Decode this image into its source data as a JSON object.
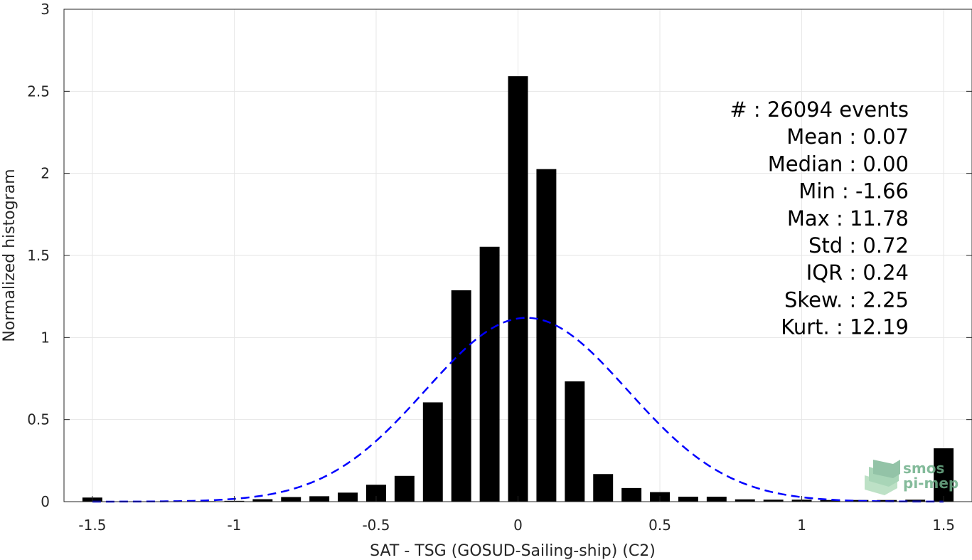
{
  "chart_data": {
    "type": "bar",
    "xlabel": "SAT - TSG (GOSUD-Sailing-ship) (C2)",
    "ylabel": "Normalized histogram",
    "xlim": [
      -1.6,
      1.6
    ],
    "ylim": [
      0,
      3
    ],
    "xticks": [
      -1.5,
      -1,
      -0.5,
      0,
      0.5,
      1,
      1.5
    ],
    "xtick_labels": [
      "-1.5",
      "-1",
      "-0.5",
      "0",
      "0.5",
      "1",
      "1.5"
    ],
    "yticks": [
      0,
      0.5,
      1,
      1.5,
      2,
      2.5,
      3
    ],
    "ytick_labels": [
      "0",
      "0.5",
      "1",
      "1.5",
      "2",
      "2.5",
      "3"
    ],
    "grid": true,
    "bin_width": 0.1,
    "series": [
      {
        "kind": "histogram",
        "color": "#000000",
        "x": [
          -1.5,
          -1.4,
          -1.3,
          -1.2,
          -1.1,
          -1.0,
          -0.9,
          -0.8,
          -0.7,
          -0.6,
          -0.5,
          -0.4,
          -0.3,
          -0.2,
          -0.1,
          0.0,
          0.1,
          0.2,
          0.3,
          0.4,
          0.5,
          0.6,
          0.7,
          0.8,
          0.9,
          1.0,
          1.1,
          1.2,
          1.3,
          1.4,
          1.5
        ],
        "values": [
          0.025,
          0.002,
          0.002,
          0.002,
          0.003,
          0.005,
          0.015,
          0.028,
          0.033,
          0.055,
          0.103,
          0.157,
          0.605,
          1.288,
          1.553,
          2.592,
          2.026,
          0.733,
          0.168,
          0.083,
          0.058,
          0.03,
          0.03,
          0.014,
          0.012,
          0.012,
          0.01,
          0.01,
          0.01,
          0.012,
          0.325
        ]
      },
      {
        "kind": "gaussian_fit",
        "color": "#0000ff",
        "style": "dashed",
        "mean": 0.03,
        "std": 0.356,
        "peak": 1.12
      }
    ],
    "stats_box": {
      "lines": [
        "#  : 26094 events",
        "Mean : 0.07",
        "Median : 0.00",
        "Min : -1.66",
        "Max : 11.78",
        "Std : 0.72",
        "IQR : 0.24",
        "Skew. : 2.25",
        "Kurt. : 12.19"
      ]
    }
  },
  "logo": {
    "line1": "smos",
    "line2": "pi-mep",
    "color": "#6fb08a"
  }
}
